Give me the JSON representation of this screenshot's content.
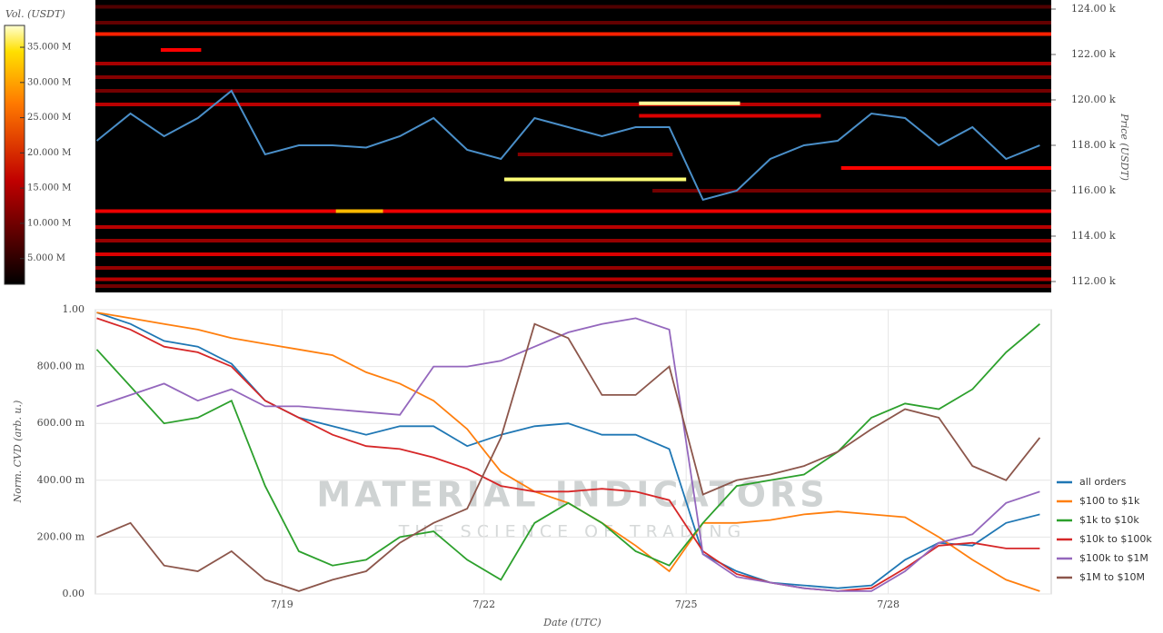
{
  "chart_data": [
    {
      "type": "heatmap",
      "colorbar_label": "Vol. (USDT)",
      "y_label": "Price (USDT)",
      "x": [
        16.25,
        16.75,
        17.25,
        17.75,
        18.25,
        18.75,
        19.25,
        19.75,
        20.25,
        20.75,
        21.25,
        21.75,
        22.25,
        22.75,
        23.25,
        23.75,
        24.25,
        24.75,
        25.25,
        25.75,
        26.25,
        26.75,
        27.25,
        27.75,
        28.25,
        28.75,
        29.25,
        29.75,
        30.25
      ],
      "xlim": [
        16.23,
        30.42
      ],
      "ylim": [
        111520,
        124400
      ],
      "yticks": [
        {
          "value": 112000,
          "label": "112.00 k"
        },
        {
          "value": 114000,
          "label": "114.00 k"
        },
        {
          "value": 116000,
          "label": "116.00 k"
        },
        {
          "value": 118000,
          "label": "118.00 k"
        },
        {
          "value": 120000,
          "label": "120.00 k"
        },
        {
          "value": 122000,
          "label": "122.00 k"
        },
        {
          "value": 124000,
          "label": "124.00 k"
        }
      ],
      "clim": [
        1350000,
        38100000
      ],
      "cticks": [
        {
          "value": 5000000,
          "label": "5.000 M"
        },
        {
          "value": 10000000,
          "label": "10.000 M"
        },
        {
          "value": 15000000,
          "label": "15.000 M"
        },
        {
          "value": 20000000,
          "label": "20.000 M"
        },
        {
          "value": 25000000,
          "label": "25.000 M"
        },
        {
          "value": 30000000,
          "label": "30.000 M"
        },
        {
          "value": 35000000,
          "label": "35.000 M"
        }
      ],
      "price": {
        "color": "#4a8fc9",
        "values": [
          118200,
          119400,
          118400,
          119200,
          120400,
          117600,
          118000,
          118000,
          117900,
          118400,
          119200,
          117800,
          117400,
          119200,
          118800,
          118400,
          118800,
          118800,
          115600,
          116000,
          117400,
          118000,
          118200,
          119400,
          119200,
          118000,
          118800,
          117400,
          118000
        ]
      },
      "bands": [
        {
          "price": 124100,
          "volume": 6000000,
          "from": 16.23,
          "to": 30.42
        },
        {
          "price": 123400,
          "volume": 7000000,
          "from": 16.23,
          "to": 30.42
        },
        {
          "price": 122900,
          "volume": 20000000,
          "from": 16.23,
          "to": 30.42
        },
        {
          "price": 122200,
          "volume": 16000000,
          "from": 17.2,
          "to": 17.8
        },
        {
          "price": 121600,
          "volume": 11000000,
          "from": 16.23,
          "to": 30.42
        },
        {
          "price": 121000,
          "volume": 9000000,
          "from": 16.23,
          "to": 30.42
        },
        {
          "price": 120400,
          "volume": 8000000,
          "from": 16.23,
          "to": 30.42
        },
        {
          "price": 119800,
          "volume": 12000000,
          "from": 16.23,
          "to": 30.42
        },
        {
          "price": 119850,
          "volume": 37000000,
          "from": 24.3,
          "to": 25.8
        },
        {
          "price": 119300,
          "volume": 14000000,
          "from": 24.3,
          "to": 27
        },
        {
          "price": 117600,
          "volume": 9000000,
          "from": 22.5,
          "to": 24.8
        },
        {
          "price": 117000,
          "volume": 18000000,
          "from": 27.3,
          "to": 30.42
        },
        {
          "price": 116500,
          "volume": 36000000,
          "from": 22.3,
          "to": 25
        },
        {
          "price": 116000,
          "volume": 8000000,
          "from": 24.5,
          "to": 30.42
        },
        {
          "price": 115100,
          "volume": 15000000,
          "from": 16.23,
          "to": 30.42
        },
        {
          "price": 115100,
          "volume": 30000000,
          "from": 19.8,
          "to": 20.5
        },
        {
          "price": 114400,
          "volume": 12000000,
          "from": 16.23,
          "to": 30.42
        },
        {
          "price": 113800,
          "volume": 10000000,
          "from": 16.23,
          "to": 30.42
        },
        {
          "price": 113200,
          "volume": 14000000,
          "from": 16.23,
          "to": 30.42
        },
        {
          "price": 112600,
          "volume": 10000000,
          "from": 16.23,
          "to": 30.42
        },
        {
          "price": 112100,
          "volume": 12000000,
          "from": 16.23,
          "to": 30.42
        },
        {
          "price": 111800,
          "volume": 8000000,
          "from": 16.23,
          "to": 30.42
        }
      ]
    },
    {
      "type": "line",
      "x_label": "Date (UTC)",
      "y_label": "Norm. CVD (arb. u.)",
      "annotations": [
        "MATERIAL INDICATORS",
        "THE SCIENCE OF TRADING"
      ],
      "x": [
        16.25,
        16.75,
        17.25,
        17.75,
        18.25,
        18.75,
        19.25,
        19.75,
        20.25,
        20.75,
        21.25,
        21.75,
        22.25,
        22.75,
        23.25,
        23.75,
        24.25,
        24.75,
        25.25,
        25.75,
        26.25,
        26.75,
        27.25,
        27.75,
        28.25,
        28.75,
        29.25,
        29.75,
        30.25
      ],
      "xlim": [
        16.23,
        30.42
      ],
      "xticks": [
        {
          "value": 19,
          "label": "7/19"
        },
        {
          "value": 22,
          "label": "7/22"
        },
        {
          "value": 25,
          "label": "7/25"
        },
        {
          "value": 28,
          "label": "7/28"
        }
      ],
      "ylim": [
        0,
        1
      ],
      "yticks": [
        {
          "value": 0,
          "label": "0.00"
        },
        {
          "value": 0.2,
          "label": "200.00 m"
        },
        {
          "value": 0.4,
          "label": "400.00 m"
        },
        {
          "value": 0.6,
          "label": "600.00 m"
        },
        {
          "value": 0.8,
          "label": "800.00 m"
        },
        {
          "value": 1,
          "label": "1.00"
        }
      ],
      "grid": true,
      "series": [
        {
          "name": "all orders",
          "color": "#1f77b4",
          "values": [
            0.99,
            0.95,
            0.89,
            0.87,
            0.81,
            0.68,
            0.62,
            0.59,
            0.56,
            0.59,
            0.59,
            0.52,
            0.56,
            0.59,
            0.6,
            0.56,
            0.56,
            0.51,
            0.14,
            0.08,
            0.04,
            0.03,
            0.02,
            0.03,
            0.12,
            0.18,
            0.17,
            0.25,
            0.28
          ]
        },
        {
          "name": "$100 to $1k",
          "color": "#ff7f0e",
          "values": [
            0.99,
            0.97,
            0.95,
            0.93,
            0.9,
            0.88,
            0.86,
            0.84,
            0.78,
            0.74,
            0.68,
            0.58,
            0.43,
            0.36,
            0.32,
            0.25,
            0.17,
            0.08,
            0.25,
            0.25,
            0.26,
            0.28,
            0.29,
            0.28,
            0.27,
            0.2,
            0.12,
            0.05,
            0.01
          ]
        },
        {
          "name": "$1k to $10k",
          "color": "#2ca02c",
          "values": [
            0.86,
            0.73,
            0.6,
            0.62,
            0.68,
            0.38,
            0.15,
            0.1,
            0.12,
            0.2,
            0.22,
            0.12,
            0.05,
            0.25,
            0.32,
            0.25,
            0.15,
            0.1,
            0.25,
            0.38,
            0.4,
            0.42,
            0.5,
            0.62,
            0.67,
            0.65,
            0.72,
            0.85,
            0.95
          ]
        },
        {
          "name": "$10k to $100k",
          "color": "#d62728",
          "values": [
            0.97,
            0.93,
            0.87,
            0.85,
            0.8,
            0.68,
            0.62,
            0.56,
            0.52,
            0.51,
            0.48,
            0.44,
            0.38,
            0.36,
            0.36,
            0.37,
            0.36,
            0.33,
            0.15,
            0.07,
            0.04,
            0.02,
            0.01,
            0.02,
            0.09,
            0.17,
            0.18,
            0.16,
            0.16
          ]
        },
        {
          "name": "$100k to $1M",
          "color": "#9467bd",
          "values": [
            0.66,
            0.7,
            0.74,
            0.68,
            0.72,
            0.66,
            0.66,
            0.65,
            0.64,
            0.63,
            0.8,
            0.8,
            0.82,
            0.87,
            0.92,
            0.95,
            0.97,
            0.93,
            0.14,
            0.06,
            0.04,
            0.02,
            0.01,
            0.01,
            0.08,
            0.18,
            0.21,
            0.32,
            0.36
          ]
        },
        {
          "name": "$1M to $10M",
          "color": "#8c564b",
          "values": [
            0.2,
            0.25,
            0.1,
            0.08,
            0.15,
            0.05,
            0.01,
            0.05,
            0.08,
            0.18,
            0.25,
            0.3,
            0.55,
            0.95,
            0.9,
            0.7,
            0.7,
            0.8,
            0.35,
            0.4,
            0.42,
            0.45,
            0.5,
            0.58,
            0.65,
            0.62,
            0.45,
            0.4,
            0.55
          ]
        }
      ]
    }
  ]
}
